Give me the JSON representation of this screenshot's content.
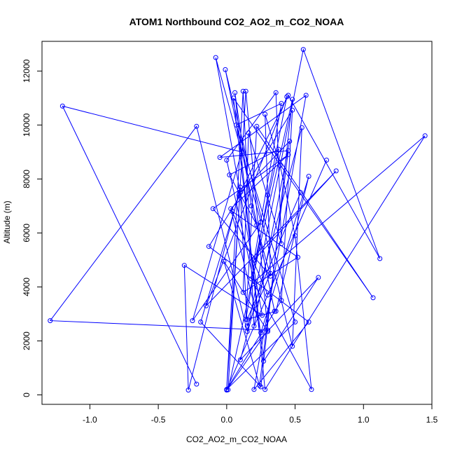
{
  "colors": {
    "series": "#0000ff",
    "axis": "#000000",
    "background": "#ffffff"
  },
  "chart_data": {
    "type": "scatter",
    "title": "ATOM1 Northbound CO2_AO2_m_CO2_NOAA",
    "xlabel": "CO2_AO2_m_CO2_NOAA",
    "ylabel": "Altitude (m)",
    "xlim": [
      -1.35,
      1.5
    ],
    "ylim": [
      -350,
      13100
    ],
    "xticks": [
      -1.0,
      -0.5,
      0.0,
      0.5,
      1.0,
      1.5
    ],
    "xtick_labels": [
      "-1.0",
      "-0.5",
      "0.0",
      "0.5",
      "1.0",
      "1.5"
    ],
    "yticks": [
      0,
      2000,
      4000,
      6000,
      8000,
      10000,
      12000
    ],
    "ytick_labels": [
      "0",
      "2000",
      "4000",
      "6000",
      "8000",
      "10000",
      "12000"
    ],
    "grid": false,
    "markers": "open circles connected by lines",
    "series": [
      {
        "x": [
          -0.22,
          -1.2,
          0.11,
          -0.25,
          0.25,
          -0.08,
          0.26,
          -0.31,
          -0.28,
          0.1,
          0.0,
          0.3,
          -1.29,
          -0.22,
          0.15,
          0.56,
          1.12,
          0.45,
          0.09,
          -0.19,
          0.25,
          0.48,
          0.01,
          0.14,
          0.3,
          -0.02,
          0.24,
          0.45,
          -0.05,
          0.58,
          0.2,
          0.6,
          -0.13,
          0.48,
          0.4,
          0.0,
          0.12,
          0.2,
          0.46,
          0.1,
          0.15,
          0.32,
          0.28,
          0.39,
          0.5,
          0.62,
          0.18,
          0.38,
          0.02,
          0.22,
          0.35,
          -0.01,
          0.48,
          0.55,
          0.1,
          0.67,
          0.27,
          0.05,
          1.07,
          0.22,
          0.14,
          0.3,
          0.44,
          -0.15,
          0.8,
          0.2,
          0.4,
          0.07,
          0.5,
          0.0,
          0.73,
          0.3,
          0.04,
          0.52,
          0.12,
          0.16,
          0.4,
          0.36,
          0.0,
          0.2,
          1.45,
          0.28,
          0.06,
          0.18,
          0.32,
          -0.1,
          0.45,
          0.03,
          0.25,
          0.6,
          0.36,
          0.15,
          0.54
        ],
        "y": [
          400,
          10700,
          9000,
          2750,
          6400,
          12500,
          2950,
          4800,
          180,
          7700,
          180,
          2400,
          2750,
          9950,
          2350,
          12800,
          5050,
          11100,
          7400,
          2700,
          300,
          10950,
          190,
          11250,
          2350,
          4950,
          350,
          9050,
          8800,
          11100,
          200,
          2700,
          5500,
          10550,
          3500,
          200,
          11250,
          2550,
          9400,
          7500,
          2550,
          4500,
          10400,
          8500,
          5900,
          200,
          4300,
          9100,
          8150,
          6300,
          3100,
          12050,
          1800,
          9900,
          1300,
          4350,
          1250,
          11000,
          3600,
          9950,
          2800,
          7400,
          11050,
          3300,
          8300,
          5000,
          10800,
          10000,
          2700,
          200,
          8700,
          3700,
          6800,
          5100,
          3800,
          9700,
          5600,
          11200,
          8700,
          4200,
          9600,
          200,
          11200,
          7000,
          4400,
          6900,
          8900,
          6900,
          2300,
          8100,
          3100,
          2800,
          7500
        ]
      }
    ]
  }
}
